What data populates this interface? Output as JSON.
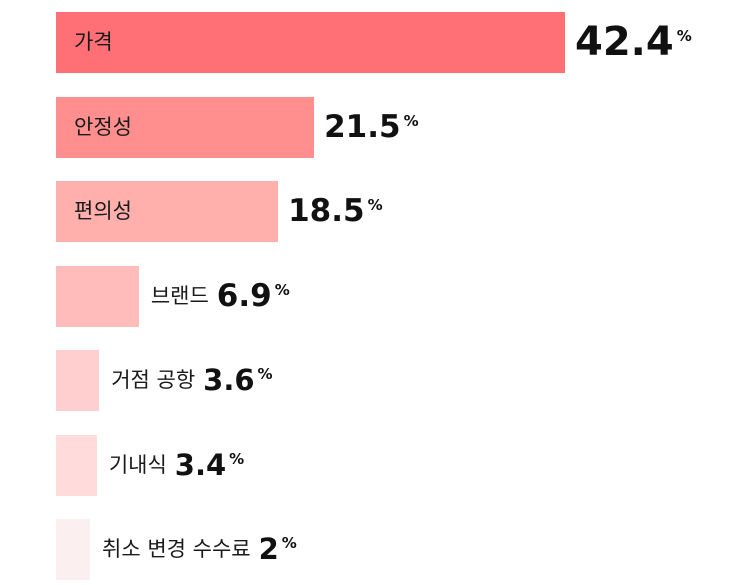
{
  "chart_data": {
    "type": "bar",
    "orientation": "horizontal",
    "categories": [
      "가격",
      "안정성",
      "편의성",
      "브랜드",
      "거점 공항",
      "기내식",
      "취소 변경 수수료"
    ],
    "values": [
      42.4,
      21.5,
      18.5,
      6.9,
      3.6,
      3.4,
      2
    ],
    "value_labels": [
      "42.4",
      "21.5",
      "18.5",
      "6.9",
      "3.6",
      "3.4",
      "2"
    ],
    "unit": "%",
    "colors": [
      "#ff7076",
      "#ff8f8f",
      "#ffb0ac",
      "#ffbcba",
      "#ffcfcf",
      "#ffdbdb",
      "#fbf0ef"
    ],
    "title": "",
    "xlabel": "",
    "ylabel": "",
    "grid": false,
    "legend": false
  }
}
